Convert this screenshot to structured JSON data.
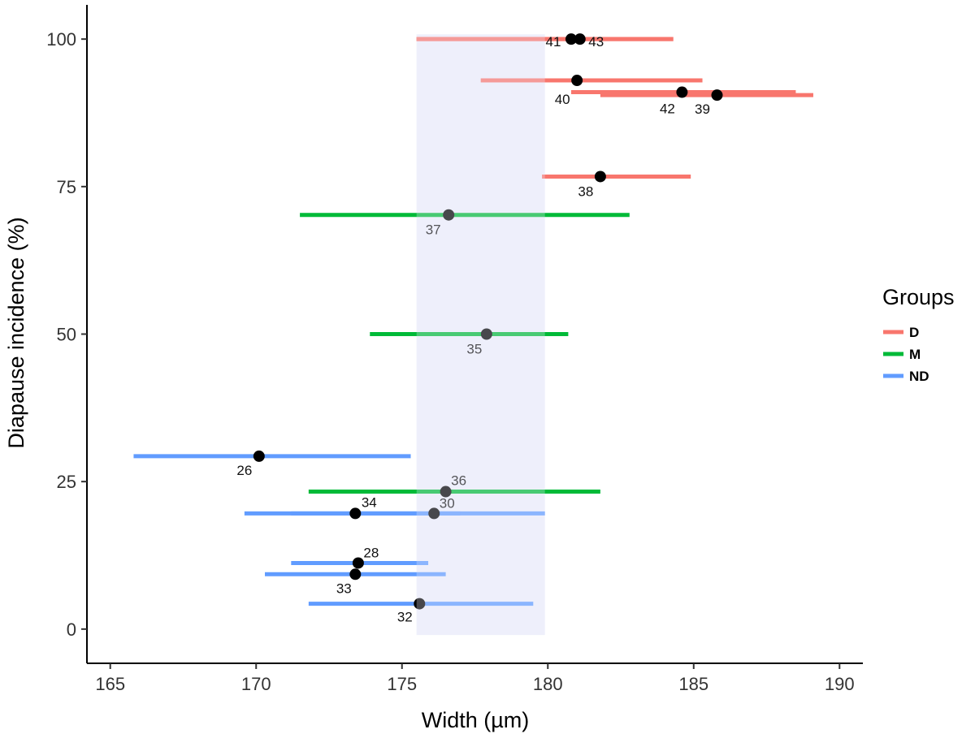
{
  "chart_data": {
    "type": "scatter",
    "title": "",
    "xlabel": "Width (µm)",
    "ylabel": "Diapause incidence (%)",
    "xlim": [
      164.2,
      190.8
    ],
    "ylim": [
      -5.8,
      105.8
    ],
    "xticks": [
      165,
      170,
      175,
      180,
      185,
      190
    ],
    "yticks": [
      0,
      25,
      50,
      75,
      100
    ],
    "xtick_labels": [
      "165",
      "170",
      "175",
      "180",
      "185",
      "190"
    ],
    "ytick_labels": [
      "0",
      "25",
      "50",
      "75",
      "100"
    ],
    "grid": false,
    "shaded_band": {
      "x": [
        175.5,
        179.9
      ],
      "y": [
        -1,
        100.8
      ],
      "color": "#eef0fb"
    },
    "legend": {
      "title": "Groups",
      "position": "right",
      "entries": [
        {
          "name": "D",
          "color": "#f8766d"
        },
        {
          "name": "M",
          "color": "#00ba38"
        },
        {
          "name": "ND",
          "color": "#619cff"
        }
      ]
    },
    "series": [
      {
        "name": "D",
        "color": "#f8766d",
        "points": [
          {
            "id": "41",
            "x": 180.8,
            "y": 100.0,
            "xmin": 175.5,
            "xmax": 184.3,
            "label_dx": -22,
            "label_dy": 9,
            "anchor": "middle"
          },
          {
            "id": "43",
            "x": 181.1,
            "y": 100.0,
            "xmin": 175.5,
            "xmax": 184.3,
            "label_dx": 20,
            "label_dy": 9,
            "anchor": "middle"
          },
          {
            "id": "40",
            "x": 181.0,
            "y": 93.0,
            "xmin": 177.7,
            "xmax": 185.3,
            "label_dx": -18,
            "label_dy": 29,
            "anchor": "middle"
          },
          {
            "id": "42",
            "x": 184.6,
            "y": 91.0,
            "xmin": 180.8,
            "xmax": 188.5,
            "label_dx": -18,
            "label_dy": 26,
            "anchor": "middle"
          },
          {
            "id": "39",
            "x": 185.8,
            "y": 90.5,
            "xmin": 181.8,
            "xmax": 189.1,
            "label_dx": -18,
            "label_dy": 23,
            "anchor": "middle"
          },
          {
            "id": "38",
            "x": 181.8,
            "y": 76.7,
            "xmin": 179.8,
            "xmax": 184.9,
            "label_dx": -18,
            "label_dy": 24,
            "anchor": "middle"
          }
        ]
      },
      {
        "name": "M",
        "color": "#00ba38",
        "points": [
          {
            "id": "37",
            "x": 176.6,
            "y": 70.2,
            "xmin": 171.5,
            "xmax": 182.8,
            "label_dx": -19,
            "label_dy": 24,
            "anchor": "middle"
          },
          {
            "id": "35",
            "x": 177.9,
            "y": 50.0,
            "xmin": 173.9,
            "xmax": 180.7,
            "label_dx": -15,
            "label_dy": 24,
            "anchor": "middle"
          },
          {
            "id": "36",
            "x": 176.5,
            "y": 23.3,
            "xmin": 171.8,
            "xmax": 181.8,
            "label_dx": 16,
            "label_dy": -8,
            "anchor": "middle"
          }
        ]
      },
      {
        "name": "ND",
        "color": "#619cff",
        "points": [
          {
            "id": "26",
            "x": 170.1,
            "y": 29.3,
            "xmin": 165.8,
            "xmax": 175.3,
            "label_dx": -18,
            "label_dy": 23,
            "anchor": "middle"
          },
          {
            "id": "34",
            "x": 173.4,
            "y": 19.6,
            "xmin": 169.6,
            "xmax": 179.9,
            "label_dx": 17,
            "label_dy": -8,
            "anchor": "middle"
          },
          {
            "id": "30",
            "x": 176.1,
            "y": 19.6,
            "xmin": 171.2,
            "xmax": 177.0,
            "label_dx": 16,
            "label_dy": -7,
            "anchor": "middle"
          },
          {
            "id": "28",
            "x": 173.5,
            "y": 11.2,
            "xmin": 171.2,
            "xmax": 175.9,
            "label_dx": 16,
            "label_dy": -7,
            "anchor": "middle"
          },
          {
            "id": "33",
            "x": 173.4,
            "y": 9.3,
            "xmin": 170.3,
            "xmax": 176.5,
            "label_dx": -14,
            "label_dy": 23,
            "anchor": "middle"
          },
          {
            "id": "32",
            "x": 175.6,
            "y": 4.3,
            "xmin": 171.8,
            "xmax": 179.5,
            "label_dx": -18,
            "label_dy": 22,
            "anchor": "middle"
          }
        ]
      }
    ]
  }
}
